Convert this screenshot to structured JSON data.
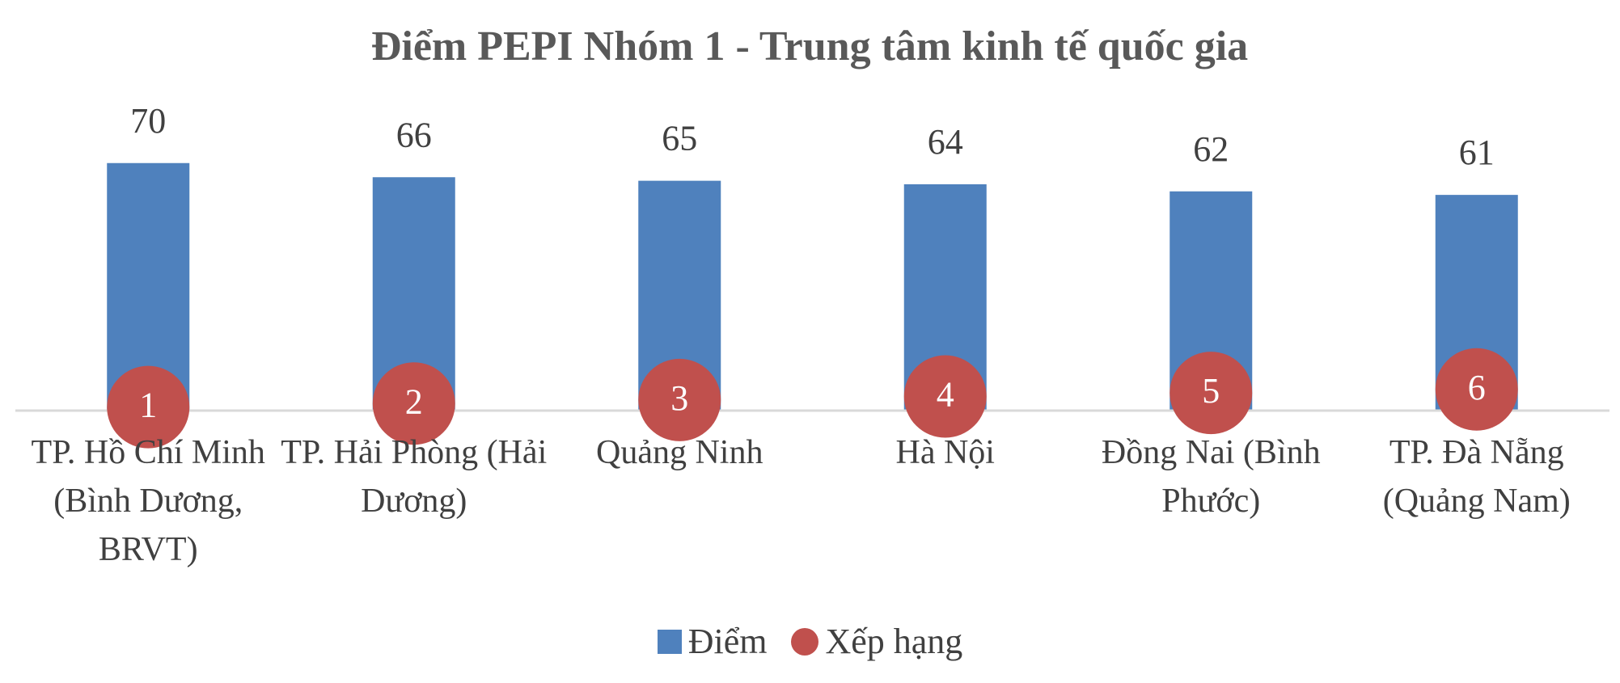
{
  "chart_data": {
    "type": "bar",
    "title": "Điểm PEPI Nhóm 1 - Trung tâm kinh tế quốc gia",
    "categories": [
      "TP. Hồ Chí Minh (Bình Dương, BRVT)",
      "TP. Hải Phòng (Hải Dương)",
      "Quảng Ninh",
      "Hà Nội",
      "Đồng Nai (Bình Phước)",
      "TP. Đà Nẵng (Quảng Nam)"
    ],
    "series": [
      {
        "name": "Điểm",
        "type": "bar",
        "color": "#4f81bd",
        "values": [
          70,
          66,
          65,
          64,
          62,
          61
        ]
      },
      {
        "name": "Xếp hạng",
        "type": "dot",
        "axis": "y2",
        "color": "#c0504d",
        "values": [
          1,
          2,
          3,
          4,
          5,
          6
        ]
      }
    ],
    "ylim": [
      0,
      80
    ],
    "y2lim": [
      0,
      80
    ],
    "grid": false
  }
}
